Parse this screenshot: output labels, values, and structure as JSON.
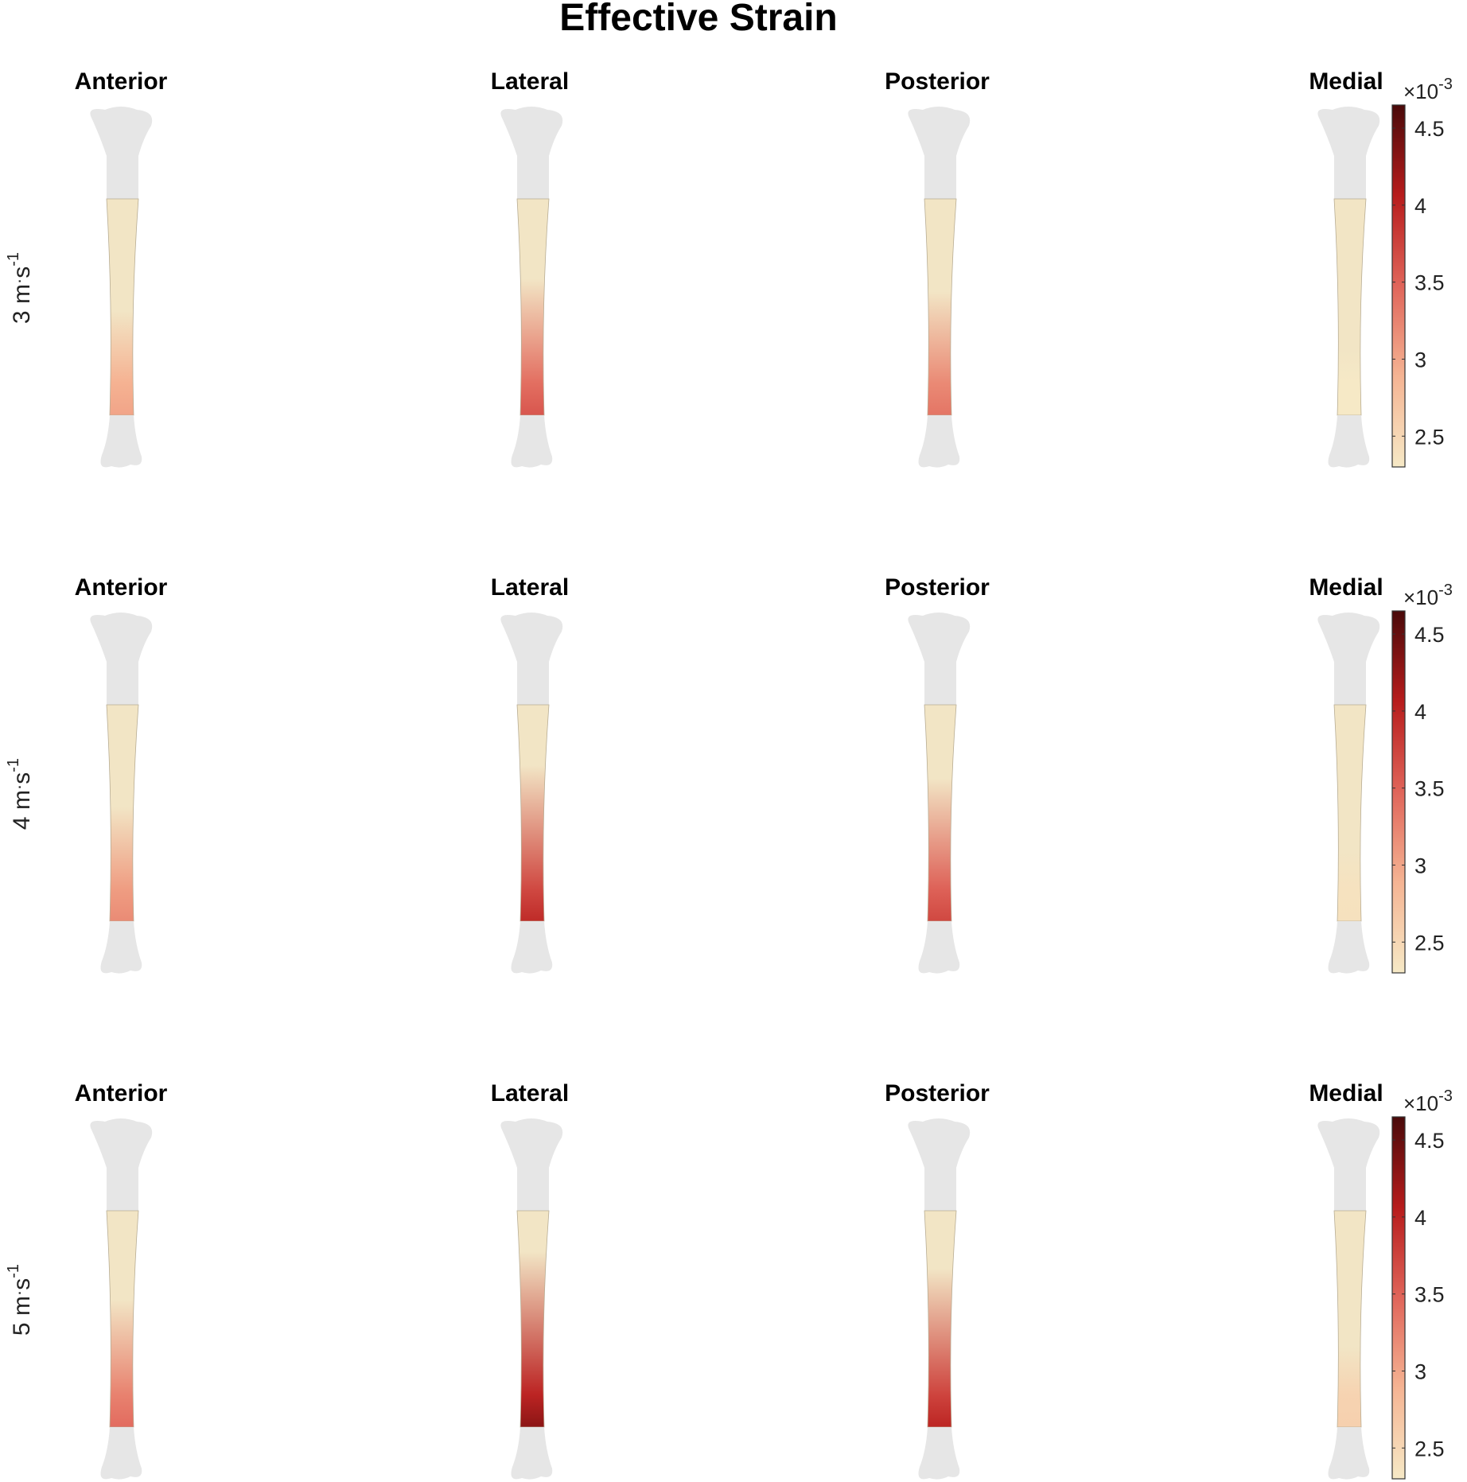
{
  "title": "Effective Strain",
  "views": [
    "Anterior",
    "Lateral",
    "Posterior",
    "Medial"
  ],
  "rows": [
    {
      "label_number": "3",
      "label_unit_m": " m",
      "label_unit_s": "s",
      "label_exp": "-1",
      "intensity": {
        "anterior": 0.3,
        "lateral": 0.55,
        "posterior": 0.45,
        "medial": 0.0
      }
    },
    {
      "label_number": "4",
      "label_unit_m": " m",
      "label_unit_s": "s",
      "label_exp": "-1",
      "intensity": {
        "anterior": 0.38,
        "lateral": 0.7,
        "posterior": 0.6,
        "medial": 0.04
      }
    },
    {
      "label_number": "5",
      "label_unit_m": " m",
      "label_unit_s": "s",
      "label_exp": "-1",
      "intensity": {
        "anterior": 0.48,
        "lateral": 0.85,
        "posterior": 0.72,
        "medial": 0.12
      }
    }
  ],
  "colorbar": {
    "multiplier_prefix": "×10",
    "multiplier_exponent": "-3",
    "ticks": [
      "4.5",
      "4",
      "3.5",
      "3",
      "2.5"
    ],
    "tick_values": [
      4.5,
      4.0,
      3.5,
      3.0,
      2.5
    ],
    "range": [
      2.3,
      4.65
    ],
    "colors": [
      "#f6e9c6",
      "#f5b493",
      "#e0655a",
      "#b71c1c",
      "#4a0a0a"
    ]
  }
}
